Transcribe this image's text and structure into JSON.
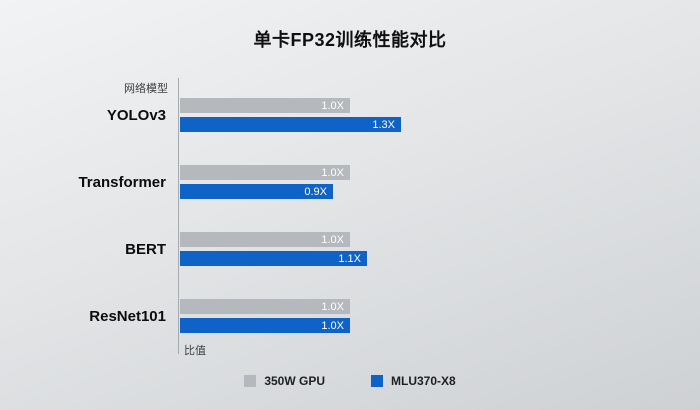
{
  "chart_data": {
    "type": "bar",
    "orientation": "horizontal",
    "title": "单卡FP32训练性能对比",
    "axis_label_top": "网络模型",
    "axis_label_bottom": "比值",
    "categories": [
      "YOLOv3",
      "Transformer",
      "BERT",
      "ResNet101"
    ],
    "series": [
      {
        "name": "350W GPU",
        "color": "#b5b9be",
        "values": [
          1.0,
          1.0,
          1.0,
          1.0
        ],
        "labels": [
          "1.0X",
          "1.0X",
          "1.0X",
          "1.0X"
        ]
      },
      {
        "name": "MLU370-X8",
        "color": "#0f62c6",
        "values": [
          1.3,
          0.9,
          1.1,
          1.0
        ],
        "labels": [
          "1.3X",
          "0.9X",
          "1.1X",
          "1.0X"
        ]
      }
    ],
    "xlim": [
      0,
      1.45
    ],
    "legend_position": "bottom",
    "grid": false
  }
}
